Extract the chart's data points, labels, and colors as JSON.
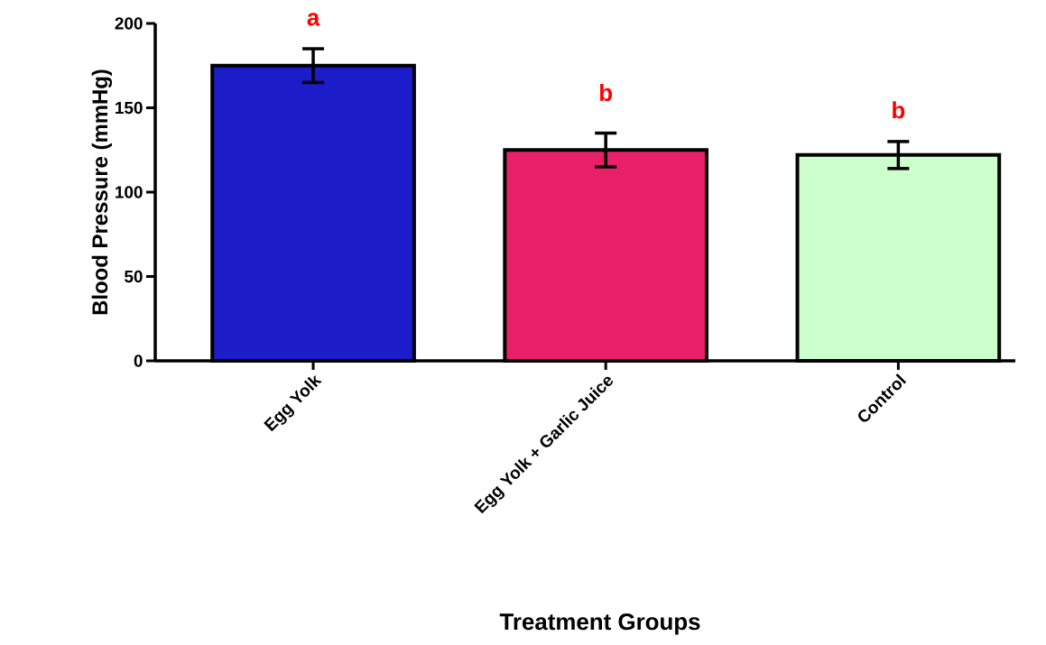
{
  "chart_data": {
    "type": "bar",
    "xlabel": "Treatment Groups",
    "ylabel": "Blood Pressure (mmHg)",
    "categories": [
      "Egg Yolk",
      "Egg Yolk + Garlic Juice",
      "Control"
    ],
    "values": [
      175,
      125,
      122
    ],
    "errors": [
      10,
      10,
      8
    ],
    "colors": [
      "#1c1cc8",
      "#e8206a",
      "#ccffcc"
    ],
    "ylim": [
      0,
      200
    ],
    "yticks": [
      0,
      50,
      100,
      150,
      200
    ],
    "grid": false,
    "annotations": [
      "a",
      "b",
      "b"
    ]
  }
}
